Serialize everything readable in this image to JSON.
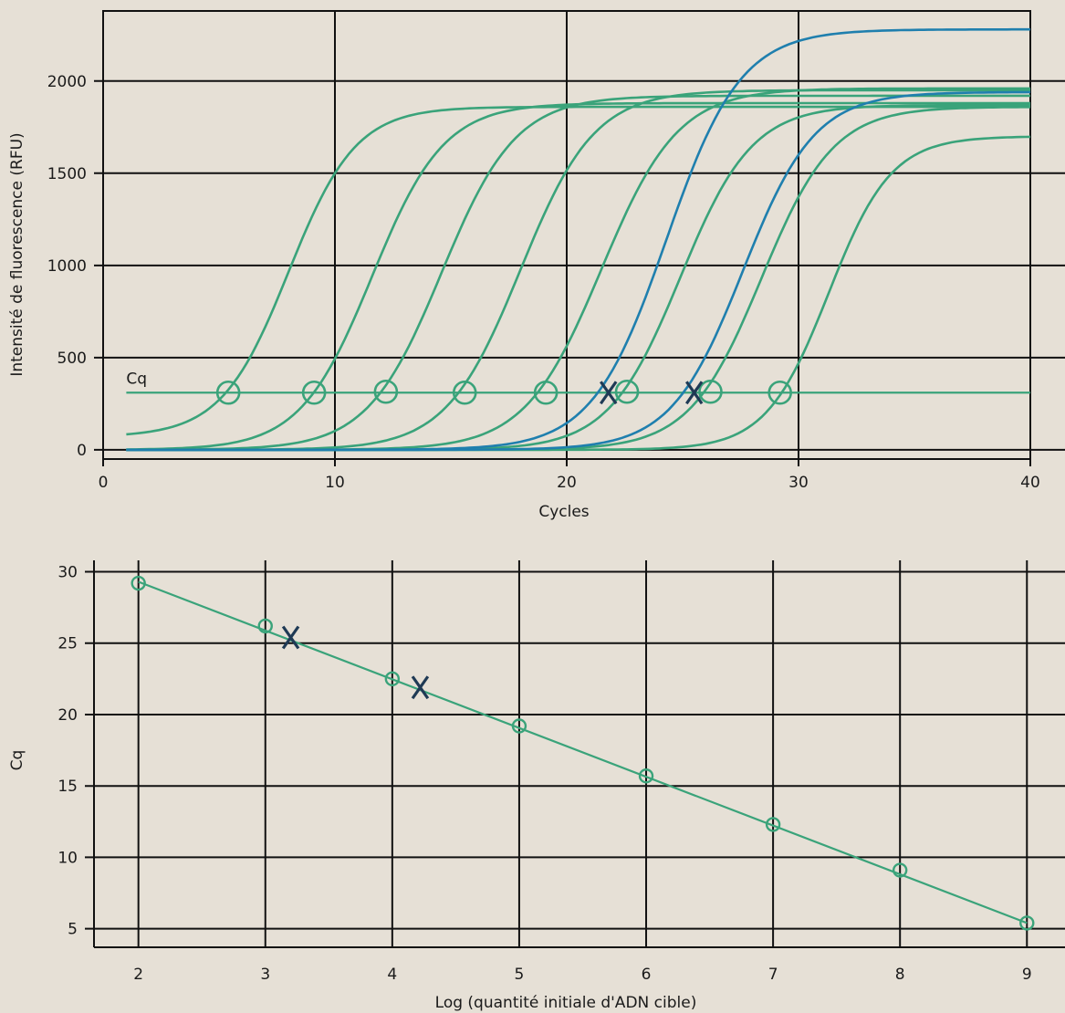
{
  "colors": {
    "background": "#e6e0d6",
    "standards": "#3aa37a",
    "unknowns": "#1f7fae",
    "grid": "#111111",
    "marker_x": "#1f3a55"
  },
  "chart_data": [
    {
      "type": "line",
      "title": "",
      "xlabel": "Cycles",
      "ylabel": "Intensité de fluorescence (RFU)",
      "xlim": [
        0,
        40
      ],
      "ylim": [
        -50,
        2380
      ],
      "x_ticks": [
        "0",
        "10",
        "20",
        "30",
        "40"
      ],
      "y_ticks": [
        "0",
        "500",
        "1000",
        "1500",
        "2000"
      ],
      "x_tick_values": [
        0,
        10,
        20,
        30,
        40
      ],
      "y_tick_values": [
        0,
        500,
        1000,
        1500,
        2000
      ],
      "grid": true,
      "threshold": {
        "label": "Cq",
        "value": 310,
        "x_start": 1,
        "x_end": 40
      },
      "series": [
        {
          "group": "standard",
          "params": {
            "base": 70,
            "plateau": 1860,
            "midpoint": 8.0,
            "slope": 1.45
          }
        },
        {
          "group": "standard",
          "params": {
            "base": 0,
            "plateau": 1880,
            "midpoint": 11.6,
            "slope": 1.55
          }
        },
        {
          "group": "standard",
          "params": {
            "base": 0,
            "plateau": 1920,
            "midpoint": 14.6,
            "slope": 1.6
          }
        },
        {
          "group": "standard",
          "params": {
            "base": 0,
            "plateau": 1950,
            "midpoint": 18.0,
            "slope": 1.6
          }
        },
        {
          "group": "standard",
          "params": {
            "base": 0,
            "plateau": 1960,
            "midpoint": 21.5,
            "slope": 1.65
          }
        },
        {
          "group": "standard",
          "params": {
            "base": 0,
            "plateau": 1870,
            "midpoint": 24.9,
            "slope": 1.55
          }
        },
        {
          "group": "standard",
          "params": {
            "base": 0,
            "plateau": 1860,
            "midpoint": 28.4,
            "slope": 1.55
          }
        },
        {
          "group": "standard",
          "params": {
            "base": 0,
            "plateau": 1700,
            "midpoint": 31.3,
            "slope": 1.35
          }
        },
        {
          "group": "unknown",
          "params": {
            "base": 0,
            "plateau": 2280,
            "midpoint": 24.3,
            "slope": 1.6
          }
        },
        {
          "group": "unknown",
          "params": {
            "base": 0,
            "plateau": 1940,
            "midpoint": 27.6,
            "slope": 1.55
          }
        }
      ],
      "cq_points": [
        {
          "x": 5.4,
          "y": 310
        },
        {
          "x": 9.1,
          "y": 310
        },
        {
          "x": 12.2,
          "y": 315
        },
        {
          "x": 15.6,
          "y": 310
        },
        {
          "x": 19.1,
          "y": 310
        },
        {
          "x": 22.6,
          "y": 315
        },
        {
          "x": 26.2,
          "y": 315
        },
        {
          "x": 29.2,
          "y": 310
        }
      ],
      "unknown_points": [
        {
          "x": 21.8,
          "y": 310
        },
        {
          "x": 25.5,
          "y": 310
        }
      ]
    },
    {
      "type": "scatter",
      "title": "",
      "xlabel": "Log (quantité initiale d'ADN cible)",
      "ylabel": "Cq",
      "xlim": [
        1.65,
        9.3
      ],
      "ylim": [
        3.7,
        30.8
      ],
      "x_ticks": [
        "2",
        "3",
        "4",
        "5",
        "6",
        "7",
        "8",
        "9"
      ],
      "y_ticks": [
        "5",
        "10",
        "15",
        "20",
        "25",
        "30"
      ],
      "x_tick_values": [
        2,
        3,
        4,
        5,
        6,
        7,
        8,
        9
      ],
      "y_tick_values": [
        5,
        10,
        15,
        20,
        25,
        30
      ],
      "grid": true,
      "points": [
        {
          "x": 2,
          "y": 29.2
        },
        {
          "x": 3,
          "y": 26.2
        },
        {
          "x": 4,
          "y": 22.5
        },
        {
          "x": 5,
          "y": 19.2
        },
        {
          "x": 6,
          "y": 15.7
        },
        {
          "x": 7,
          "y": 12.3
        },
        {
          "x": 8,
          "y": 9.1
        },
        {
          "x": 9,
          "y": 5.4
        }
      ],
      "unknown_points": [
        {
          "x": 3.2,
          "y": 25.4
        },
        {
          "x": 4.22,
          "y": 21.9
        }
      ],
      "fit_line": {
        "x": [
          2,
          9
        ],
        "y": [
          29.3,
          5.4
        ]
      }
    }
  ]
}
